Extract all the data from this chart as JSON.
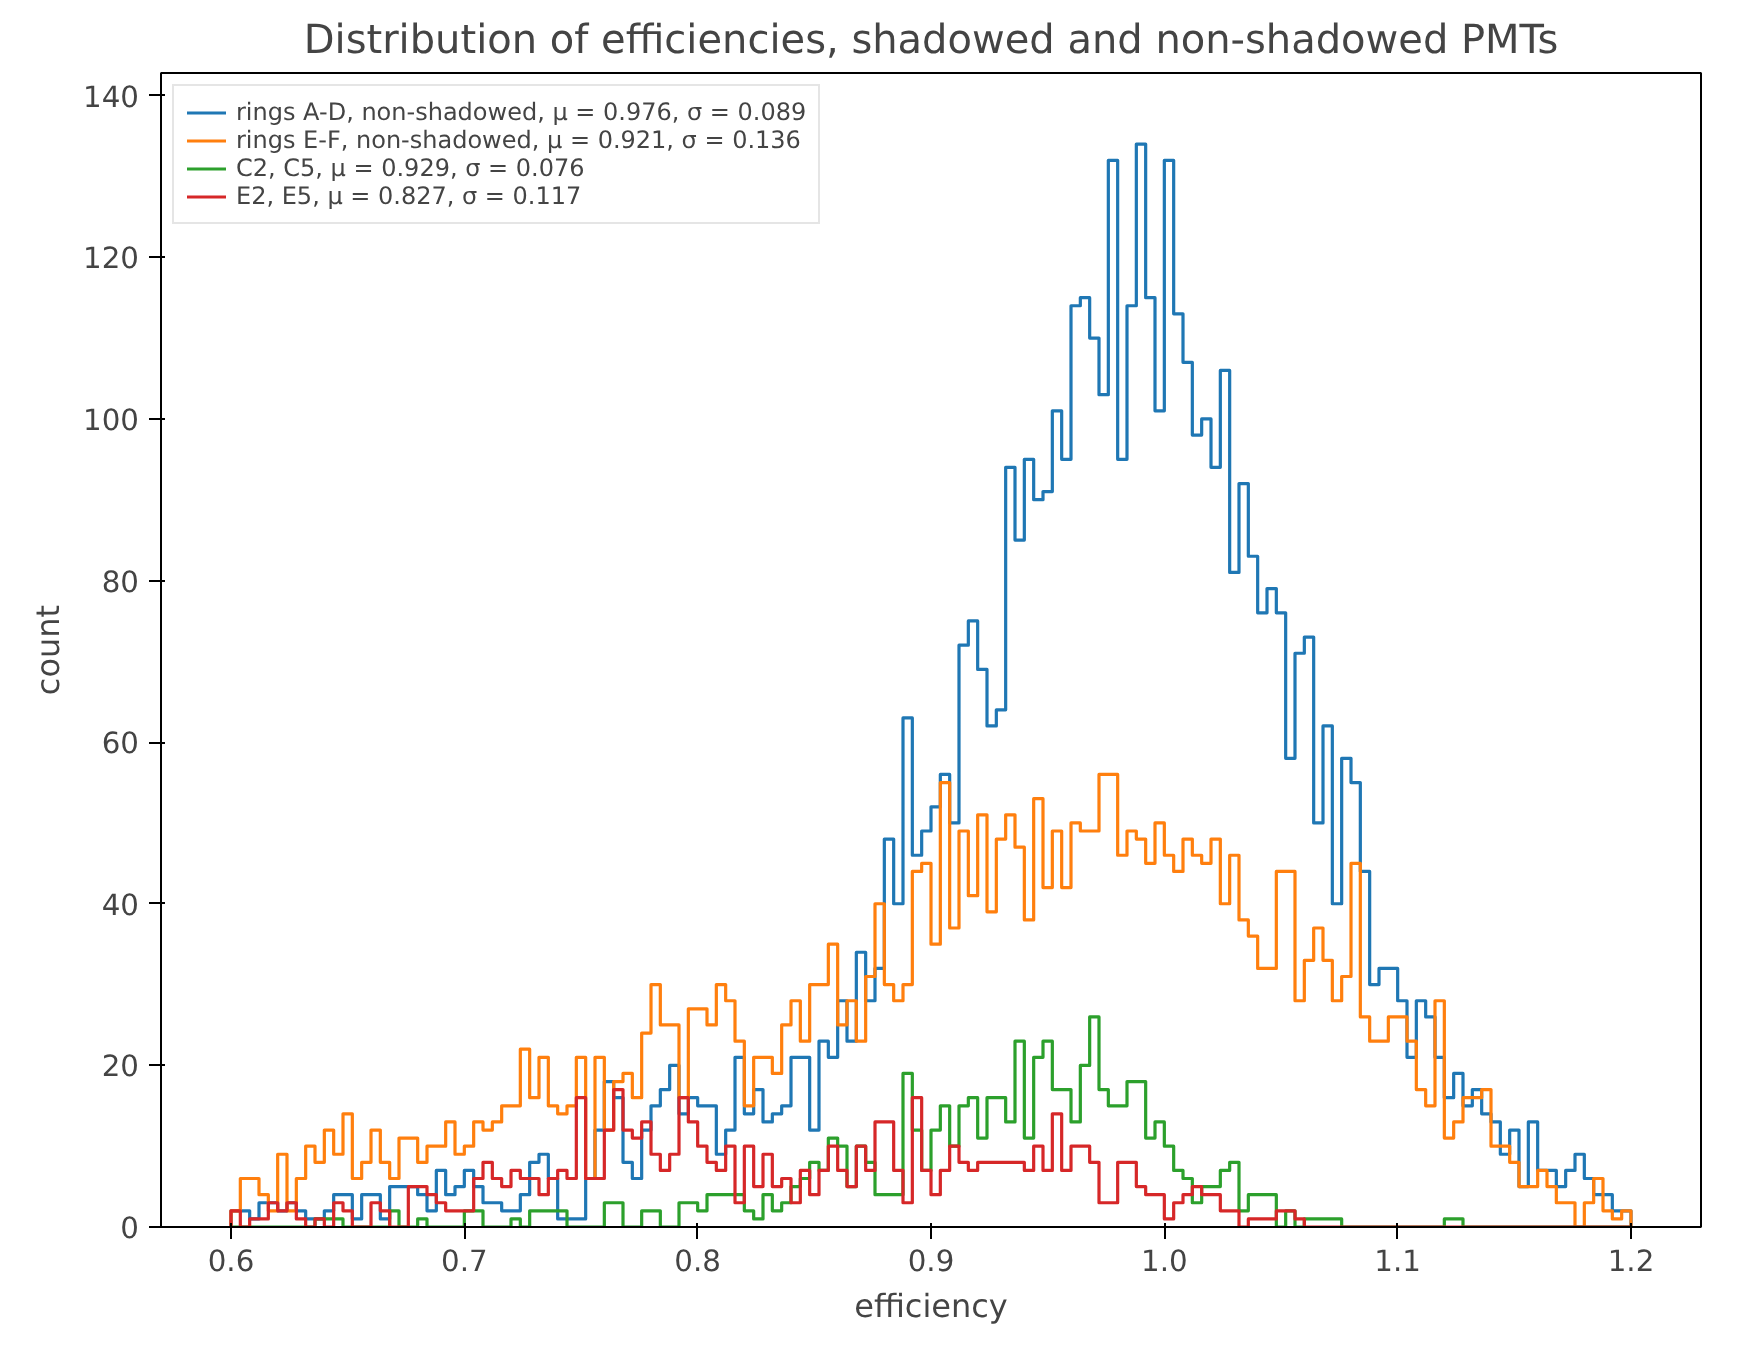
{
  "chart_data": {
    "type": "histogram",
    "title": "Distribution of efficiencies, shadowed and non-shadowed PMTs",
    "xlabel": "efficiency",
    "ylabel": "count",
    "bins": [
      0.6,
      0.604,
      0.608,
      0.612,
      0.616,
      0.62,
      0.624,
      0.628,
      0.632,
      0.636,
      0.64,
      0.644,
      0.648,
      0.652,
      0.656,
      0.66,
      0.664,
      0.668,
      0.672,
      0.676,
      0.68,
      0.684,
      0.688,
      0.692,
      0.696,
      0.7,
      0.704,
      0.708,
      0.712,
      0.716,
      0.72,
      0.724,
      0.728,
      0.732,
      0.736,
      0.74,
      0.744,
      0.748,
      0.752,
      0.756,
      0.76,
      0.764,
      0.768,
      0.772,
      0.776,
      0.78,
      0.784,
      0.788,
      0.792,
      0.796,
      0.8,
      0.804,
      0.808,
      0.812,
      0.816,
      0.82,
      0.824,
      0.828,
      0.832,
      0.836,
      0.84,
      0.844,
      0.848,
      0.852,
      0.856,
      0.86,
      0.864,
      0.868,
      0.872,
      0.876,
      0.88,
      0.884,
      0.888,
      0.892,
      0.896,
      0.9,
      0.904,
      0.908,
      0.912,
      0.916,
      0.92,
      0.924,
      0.928,
      0.932,
      0.936,
      0.94,
      0.944,
      0.948,
      0.952,
      0.956,
      0.96,
      0.964,
      0.968,
      0.972,
      0.976,
      0.98,
      0.984,
      0.988,
      0.992,
      0.996,
      1.0,
      1.004,
      1.008,
      1.012,
      1.016,
      1.02,
      1.024,
      1.028,
      1.032,
      1.036,
      1.04,
      1.044,
      1.048,
      1.052,
      1.056,
      1.06,
      1.064,
      1.068,
      1.072,
      1.076,
      1.08,
      1.084,
      1.088,
      1.092,
      1.096,
      1.1,
      1.104,
      1.108,
      1.112,
      1.116,
      1.12,
      1.124,
      1.128,
      1.132,
      1.136,
      1.14,
      1.144,
      1.148,
      1.152,
      1.156,
      1.16,
      1.164,
      1.168,
      1.172,
      1.176,
      1.18,
      1.184,
      1.188,
      1.192,
      1.196,
      1.2
    ],
    "series": [
      {
        "name": "rings A-D, non-shadowed, μ = 0.976, σ = 0.089",
        "color": "#1f77b4",
        "values": [
          2,
          2,
          1,
          3,
          3,
          2,
          3,
          2,
          1,
          1,
          2,
          4,
          4,
          1,
          4,
          4,
          1,
          5,
          5,
          5,
          4,
          2,
          7,
          4,
          5,
          7,
          5,
          3,
          3,
          2,
          2,
          4,
          8,
          9,
          6,
          1,
          1,
          1,
          6,
          12,
          18,
          16,
          8,
          6,
          12,
          15,
          17,
          20,
          14,
          16,
          15,
          15,
          9,
          12,
          21,
          14,
          17,
          13,
          14,
          15,
          21,
          21,
          12,
          23,
          21,
          28,
          23,
          34,
          28,
          32,
          48,
          40,
          63,
          46,
          49,
          52,
          56,
          50,
          72,
          75,
          69,
          62,
          64,
          94,
          85,
          95,
          90,
          91,
          101,
          95,
          114,
          115,
          110,
          103,
          132,
          95,
          114,
          134,
          115,
          101,
          132,
          113,
          107,
          98,
          100,
          94,
          106,
          81,
          92,
          83,
          76,
          79,
          76,
          58,
          71,
          73,
          50,
          62,
          40,
          58,
          55,
          44,
          30,
          32,
          32,
          28,
          21,
          28,
          26,
          21,
          16,
          19,
          15,
          17,
          14,
          13,
          9,
          12,
          5,
          13,
          7,
          7,
          5,
          7,
          9,
          6,
          4,
          4,
          2,
          2
        ]
      },
      {
        "name": "rings E-F, non-shadowed, μ = 0.921, σ = 0.136",
        "color": "#ff7f0e",
        "values": [
          2,
          6,
          6,
          4,
          2,
          9,
          2,
          6,
          10,
          8,
          12,
          9,
          14,
          6,
          8,
          12,
          8,
          6,
          11,
          11,
          8,
          10,
          10,
          13,
          9,
          10,
          13,
          12,
          13,
          15,
          15,
          22,
          16,
          21,
          15,
          14,
          15,
          21,
          6,
          21,
          12,
          18,
          19,
          16,
          24,
          30,
          25,
          25,
          16,
          27,
          27,
          25,
          30,
          28,
          23,
          15,
          21,
          21,
          19,
          25,
          28,
          23,
          30,
          30,
          35,
          25,
          28,
          23,
          31,
          40,
          30,
          28,
          30,
          44,
          45,
          35,
          55,
          37,
          49,
          41,
          51,
          39,
          48,
          51,
          47,
          38,
          53,
          42,
          49,
          42,
          50,
          49,
          49,
          56,
          56,
          46,
          49,
          48,
          45,
          50,
          46,
          44,
          48,
          46,
          45,
          48,
          40,
          46,
          38,
          36,
          32,
          32,
          44,
          44,
          28,
          33,
          37,
          33,
          28,
          31,
          45,
          26,
          23,
          23,
          26,
          26,
          23,
          17,
          15,
          28,
          11,
          13,
          16,
          16,
          17,
          10,
          10,
          8,
          5,
          5,
          7,
          5,
          3,
          3,
          0,
          3,
          6,
          2,
          1,
          2
        ]
      },
      {
        "name": "C2, C5, μ = 0.929, σ = 0.076",
        "color": "#2ca02c",
        "values": [
          0,
          0,
          0,
          0,
          0,
          0,
          0,
          0,
          0,
          1,
          1,
          1,
          0,
          0,
          0,
          0,
          0,
          2,
          0,
          0,
          1,
          0,
          0,
          0,
          0,
          2,
          2,
          0,
          0,
          0,
          1,
          0,
          2,
          2,
          2,
          2,
          0,
          0,
          0,
          0,
          3,
          3,
          0,
          0,
          2,
          2,
          0,
          0,
          3,
          3,
          2,
          4,
          4,
          4,
          4,
          2,
          1,
          4,
          2,
          3,
          5,
          6,
          8,
          7,
          11,
          10,
          5,
          10,
          8,
          4,
          4,
          4,
          19,
          12,
          7,
          12,
          15,
          10,
          15,
          16,
          11,
          16,
          16,
          13,
          23,
          11,
          21,
          23,
          17,
          17,
          13,
          20,
          26,
          17,
          15,
          15,
          18,
          18,
          11,
          13,
          10,
          7,
          6,
          3,
          5,
          5,
          7,
          8,
          2,
          4,
          4,
          4,
          0,
          2,
          0,
          1,
          1,
          1,
          1,
          0,
          0,
          0,
          0,
          0,
          0,
          0,
          0,
          0,
          0,
          0,
          1,
          1,
          0,
          0,
          0,
          0,
          0,
          0,
          0,
          0,
          0,
          0,
          0,
          0,
          0,
          0,
          0,
          0,
          0,
          0
        ]
      },
      {
        "name": "E2, E5, μ = 0.827, σ = 0.117",
        "color": "#d62728",
        "values": [
          2,
          0,
          1,
          1,
          3,
          2,
          3,
          1,
          0,
          1,
          0,
          3,
          2,
          0,
          0,
          3,
          2,
          0,
          0,
          5,
          5,
          4,
          3,
          2,
          2,
          2,
          6,
          8,
          6,
          5,
          7,
          6,
          6,
          4,
          6,
          7,
          6,
          16,
          6,
          6,
          12,
          17,
          12,
          11,
          13,
          9,
          7,
          9,
          16,
          13,
          10,
          8,
          7,
          10,
          3,
          10,
          5,
          9,
          5,
          6,
          3,
          7,
          4,
          7,
          10,
          7,
          5,
          10,
          7,
          13,
          13,
          7,
          3,
          16,
          7,
          4,
          7,
          10,
          8,
          7,
          8,
          8,
          8,
          8,
          8,
          7,
          10,
          7,
          14,
          7,
          10,
          10,
          8,
          3,
          3,
          8,
          8,
          5,
          4,
          4,
          1,
          3,
          4,
          5,
          4,
          4,
          2,
          2,
          0,
          1,
          1,
          1,
          2,
          2,
          1,
          0,
          0,
          0,
          0,
          0,
          0,
          0,
          0,
          0,
          0,
          0,
          0,
          0,
          0,
          0,
          0,
          0,
          0,
          0,
          0,
          0,
          0,
          0,
          0,
          0,
          0,
          0,
          0,
          0,
          0,
          0,
          0,
          0,
          0,
          0
        ]
      }
    ],
    "xlim": [
      0.57,
      1.23
    ],
    "ylim": [
      0,
      142.8
    ],
    "xticks": [
      {
        "value": 0.6,
        "label": "0.6"
      },
      {
        "value": 0.7,
        "label": "0.7"
      },
      {
        "value": 0.8,
        "label": "0.8"
      },
      {
        "value": 0.9,
        "label": "0.9"
      },
      {
        "value": 1.0,
        "label": "1.0"
      },
      {
        "value": 1.1,
        "label": "1.1"
      },
      {
        "value": 1.2,
        "label": "1.2"
      }
    ],
    "yticks": [
      0,
      20,
      40,
      60,
      80,
      100,
      120,
      140
    ],
    "legend": "top left"
  }
}
